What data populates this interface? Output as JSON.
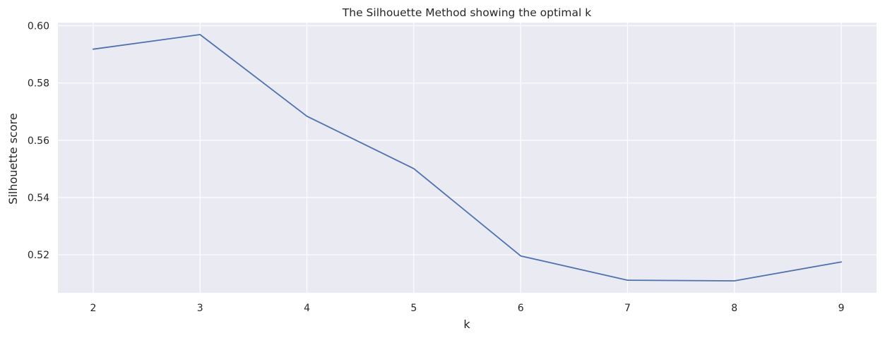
{
  "chart_data": {
    "type": "line",
    "title": "The Silhouette Method showing the optimal k",
    "xlabel": "k",
    "ylabel": "Silhouette score",
    "x": [
      2,
      3,
      4,
      5,
      6,
      7,
      8,
      9
    ],
    "series": [
      {
        "values": [
          0.5918,
          0.5969,
          0.5684,
          0.5501,
          0.5196,
          0.5111,
          0.5109,
          0.5175
        ],
        "color": "#4c72b0"
      }
    ],
    "xticks": [
      2,
      3,
      4,
      5,
      6,
      7,
      8,
      9
    ],
    "yticks": [
      0.52,
      0.54,
      0.56,
      0.58,
      0.6
    ],
    "ytick_labels": [
      "0.52",
      "0.54",
      "0.56",
      "0.58",
      "0.60"
    ],
    "xlim": [
      1.67,
      9.33
    ],
    "ylim": [
      0.5067,
      0.6011
    ],
    "grid": true,
    "background_color": "#eaeaf2",
    "grid_color": "#ffffff"
  }
}
